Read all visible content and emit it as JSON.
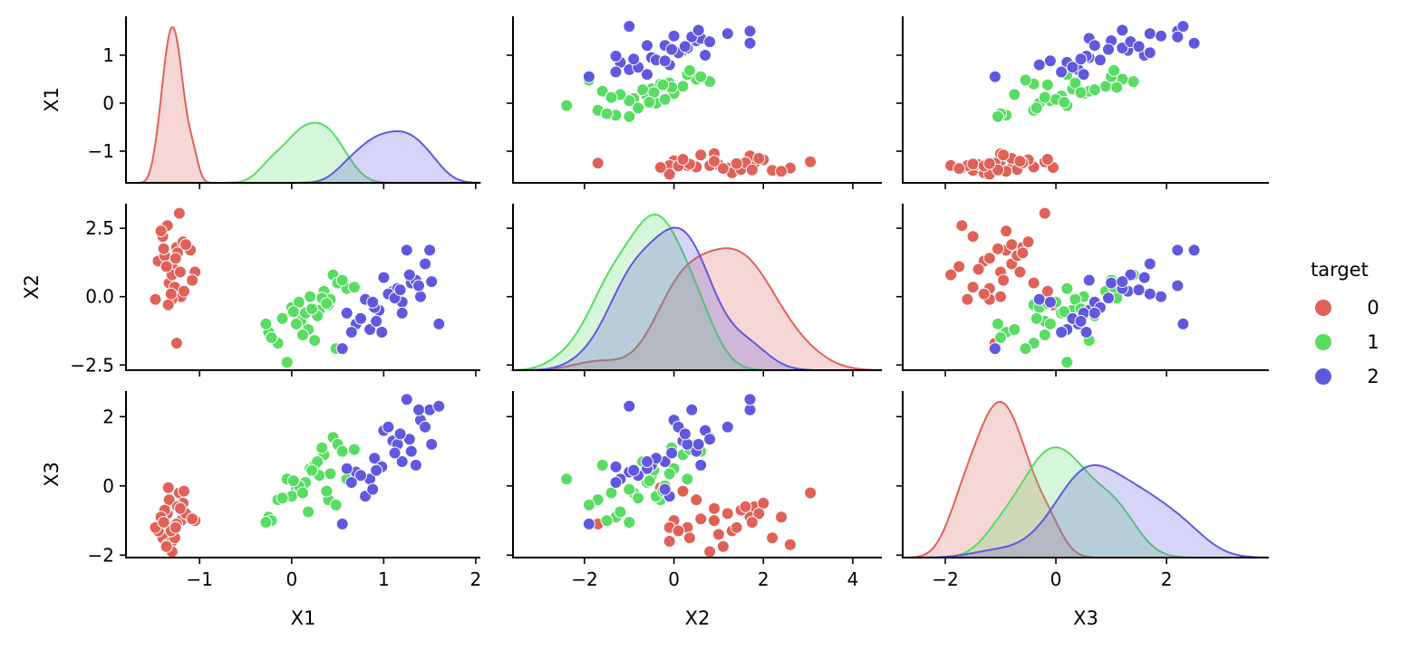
{
  "chart_data": {
    "type": "scatter",
    "title": "",
    "kind": "pairplot",
    "variables": [
      "X1",
      "X2",
      "X3"
    ],
    "hue": "target",
    "diag_kind": "kde",
    "legend": {
      "title": "target",
      "placement": "right",
      "entries": [
        {
          "label": "0",
          "color": "#e06158"
        },
        {
          "label": "1",
          "color": "#58dc62"
        },
        {
          "label": "2",
          "color": "#6158e0"
        }
      ]
    },
    "axes": {
      "X1": {
        "range": [
          -1.8,
          2.05
        ],
        "ticks": [
          -1,
          0,
          1,
          2
        ],
        "tick_labels": [
          "−1",
          "0",
          "1",
          "2"
        ],
        "diag_y_ticks": [
          -1,
          0,
          1
        ],
        "diag_y_tick_labels": [
          "−1",
          "0",
          "1"
        ],
        "y_range": [
          -1.66,
          1.81
        ]
      },
      "X2": {
        "range": [
          -3.6,
          4.65
        ],
        "ticks": [
          -2,
          0,
          2,
          4
        ],
        "tick_labels": [
          "−2",
          "0",
          "2",
          "4"
        ],
        "y_ticks": [
          -2.5,
          0.0,
          2.5
        ],
        "y_tick_labels": [
          "−2.5",
          "0.0",
          "2.5"
        ],
        "y_range": [
          -2.69,
          3.4
        ]
      },
      "X3": {
        "range": [
          -2.77,
          3.85
        ],
        "ticks": [
          -2,
          0,
          2
        ],
        "tick_labels": [
          "−2",
          "0",
          "2"
        ],
        "y_ticks": [
          -2,
          0,
          2
        ],
        "y_tick_labels": [
          "−2",
          "0",
          "2"
        ],
        "y_range": [
          -2.07,
          2.74
        ]
      }
    },
    "points": [
      [
        -1.35,
        1.2,
        -0.8,
        0
      ],
      [
        -1.3,
        0.3,
        -1.2,
        0
      ],
      [
        -1.25,
        1.8,
        -0.6,
        0
      ],
      [
        -1.4,
        2.2,
        -1.5,
        0
      ],
      [
        -1.2,
        0.0,
        -1.0,
        0
      ],
      [
        -1.35,
        2.6,
        -1.7,
        0
      ],
      [
        -1.1,
        1.7,
        -0.9,
        0
      ],
      [
        -1.3,
        -0.1,
        -1.6,
        0
      ],
      [
        -1.45,
        1.3,
        -1.3,
        0
      ],
      [
        -1.22,
        3.05,
        -0.2,
        0
      ],
      [
        -1.28,
        1.0,
        -1.4,
        0
      ],
      [
        -1.33,
        0.5,
        -0.4,
        0
      ],
      [
        -1.05,
        0.9,
        -1.0,
        0
      ],
      [
        -1.25,
        -1.7,
        -1.1,
        0
      ],
      [
        -1.38,
        1.5,
        -0.7,
        0
      ],
      [
        -1.18,
        2.0,
        -0.5,
        0
      ],
      [
        -1.3,
        0.8,
        -1.9,
        0
      ],
      [
        -1.48,
        -0.1,
        -1.2,
        0
      ],
      [
        -1.15,
        1.9,
        -0.8,
        0
      ],
      [
        -1.27,
        0.35,
        -1.5,
        0
      ],
      [
        -1.42,
        2.4,
        -0.9,
        0
      ],
      [
        -1.34,
        -0.3,
        -0.05,
        0
      ],
      [
        -1.08,
        0.6,
        -0.95,
        0
      ],
      [
        -1.36,
        1.1,
        -1.75,
        0
      ],
      [
        -1.24,
        1.6,
        -0.6,
        0
      ],
      [
        -1.31,
        0.1,
        -1.3,
        0
      ],
      [
        -1.21,
        0.9,
        -0.65,
        0
      ],
      [
        -1.39,
        1.75,
        -1.05,
        0
      ],
      [
        -1.26,
        1.4,
        -1.2,
        0
      ],
      [
        -1.17,
        0.2,
        -0.15,
        0
      ],
      [
        0.3,
        -0.5,
        0.3,
        1
      ],
      [
        0.1,
        -0.9,
        -0.2,
        1
      ],
      [
        0.45,
        0.8,
        1.4,
        1
      ],
      [
        -0.25,
        -1.3,
        -0.9,
        1
      ],
      [
        0.2,
        0.0,
        0.5,
        1
      ],
      [
        0.05,
        -1.0,
        -0.1,
        1
      ],
      [
        0.35,
        0.2,
        0.9,
        1
      ],
      [
        0.5,
        0.5,
        1.2,
        1
      ],
      [
        -0.15,
        -1.7,
        -0.4,
        1
      ],
      [
        0.15,
        -0.6,
        0.1,
        1
      ],
      [
        0.4,
        -0.3,
        -0.4,
        1
      ],
      [
        0.25,
        -1.6,
        0.6,
        1
      ],
      [
        -0.05,
        -2.4,
        0.2,
        1
      ],
      [
        0.6,
        0.3,
        0.2,
        1
      ],
      [
        0.0,
        -0.4,
        -0.3,
        1
      ],
      [
        0.18,
        -1.2,
        -0.75,
        1
      ],
      [
        0.42,
        -0.1,
        0.35,
        1
      ],
      [
        -0.22,
        -1.5,
        -1.0,
        1
      ],
      [
        0.08,
        -0.2,
        0.0,
        1
      ],
      [
        0.55,
        0.6,
        1.0,
        1
      ],
      [
        0.28,
        -0.7,
        0.7,
        1
      ],
      [
        0.12,
        -1.4,
        -0.2,
        1
      ],
      [
        0.48,
        -1.9,
        -0.55,
        1
      ],
      [
        0.33,
        -0.05,
        1.1,
        1
      ],
      [
        0.68,
        0.35,
        1.05,
        1
      ],
      [
        -0.1,
        -0.8,
        -0.35,
        1
      ],
      [
        0.22,
        -0.45,
        0.45,
        1
      ],
      [
        0.38,
        -0.25,
        -0.15,
        1
      ],
      [
        -0.28,
        -1.0,
        -1.05,
        1
      ],
      [
        0.02,
        -0.55,
        0.15,
        1
      ],
      [
        1.1,
        0.2,
        1.3,
        2
      ],
      [
        0.95,
        -0.5,
        0.6,
        2
      ],
      [
        1.3,
        0.5,
        1.0,
        2
      ],
      [
        0.7,
        -1.0,
        0.4,
        2
      ],
      [
        1.5,
        1.7,
        2.2,
        2
      ],
      [
        1.2,
        -0.2,
        0.7,
        2
      ],
      [
        0.85,
        -1.2,
        0.2,
        2
      ],
      [
        1.4,
        0.0,
        1.9,
        2
      ],
      [
        1.0,
        0.7,
        1.6,
        2
      ],
      [
        0.6,
        -0.6,
        0.5,
        2
      ],
      [
        1.6,
        -1.0,
        2.3,
        2
      ],
      [
        1.25,
        1.7,
        2.5,
        2
      ],
      [
        0.8,
        -0.1,
        -0.3,
        2
      ],
      [
        1.15,
        0.3,
        1.2,
        2
      ],
      [
        0.55,
        -1.9,
        -1.1,
        2
      ],
      [
        1.35,
        0.6,
        0.6,
        2
      ],
      [
        0.9,
        -0.4,
        0.8,
        2
      ],
      [
        1.05,
        0.1,
        1.7,
        2
      ],
      [
        1.45,
        1.2,
        1.7,
        2
      ],
      [
        0.75,
        -0.8,
        0.3,
        2
      ],
      [
        1.2,
        -0.6,
        0.7,
        2
      ],
      [
        0.98,
        -1.3,
        0.55,
        2
      ],
      [
        1.28,
        0.8,
        1.35,
        2
      ],
      [
        1.38,
        0.4,
        2.2,
        2
      ],
      [
        0.65,
        -1.3,
        0.1,
        2
      ],
      [
        1.12,
        -0.05,
        0.95,
        2
      ],
      [
        0.88,
        -0.2,
        -0.1,
        2
      ],
      [
        1.18,
        0.25,
        1.5,
        2
      ],
      [
        1.52,
        0.55,
        1.2,
        2
      ],
      [
        0.92,
        -0.9,
        0.45,
        2
      ]
    ],
    "kde_peaks": {
      "X1": [
        {
          "target": "0",
          "mode": -1.3
        },
        {
          "target": "1",
          "mode": 0.3
        },
        {
          "target": "2",
          "mode": 1.15
        }
      ],
      "X2": [
        {
          "target": "0",
          "mode": 0.8
        },
        {
          "target": "1",
          "mode": -0.4
        },
        {
          "target": "2",
          "mode": -0.2
        }
      ],
      "X3": [
        {
          "target": "0",
          "mode": -1.0
        },
        {
          "target": "1",
          "mode": -0.1
        },
        {
          "target": "2",
          "mode": 0.7
        }
      ]
    }
  }
}
